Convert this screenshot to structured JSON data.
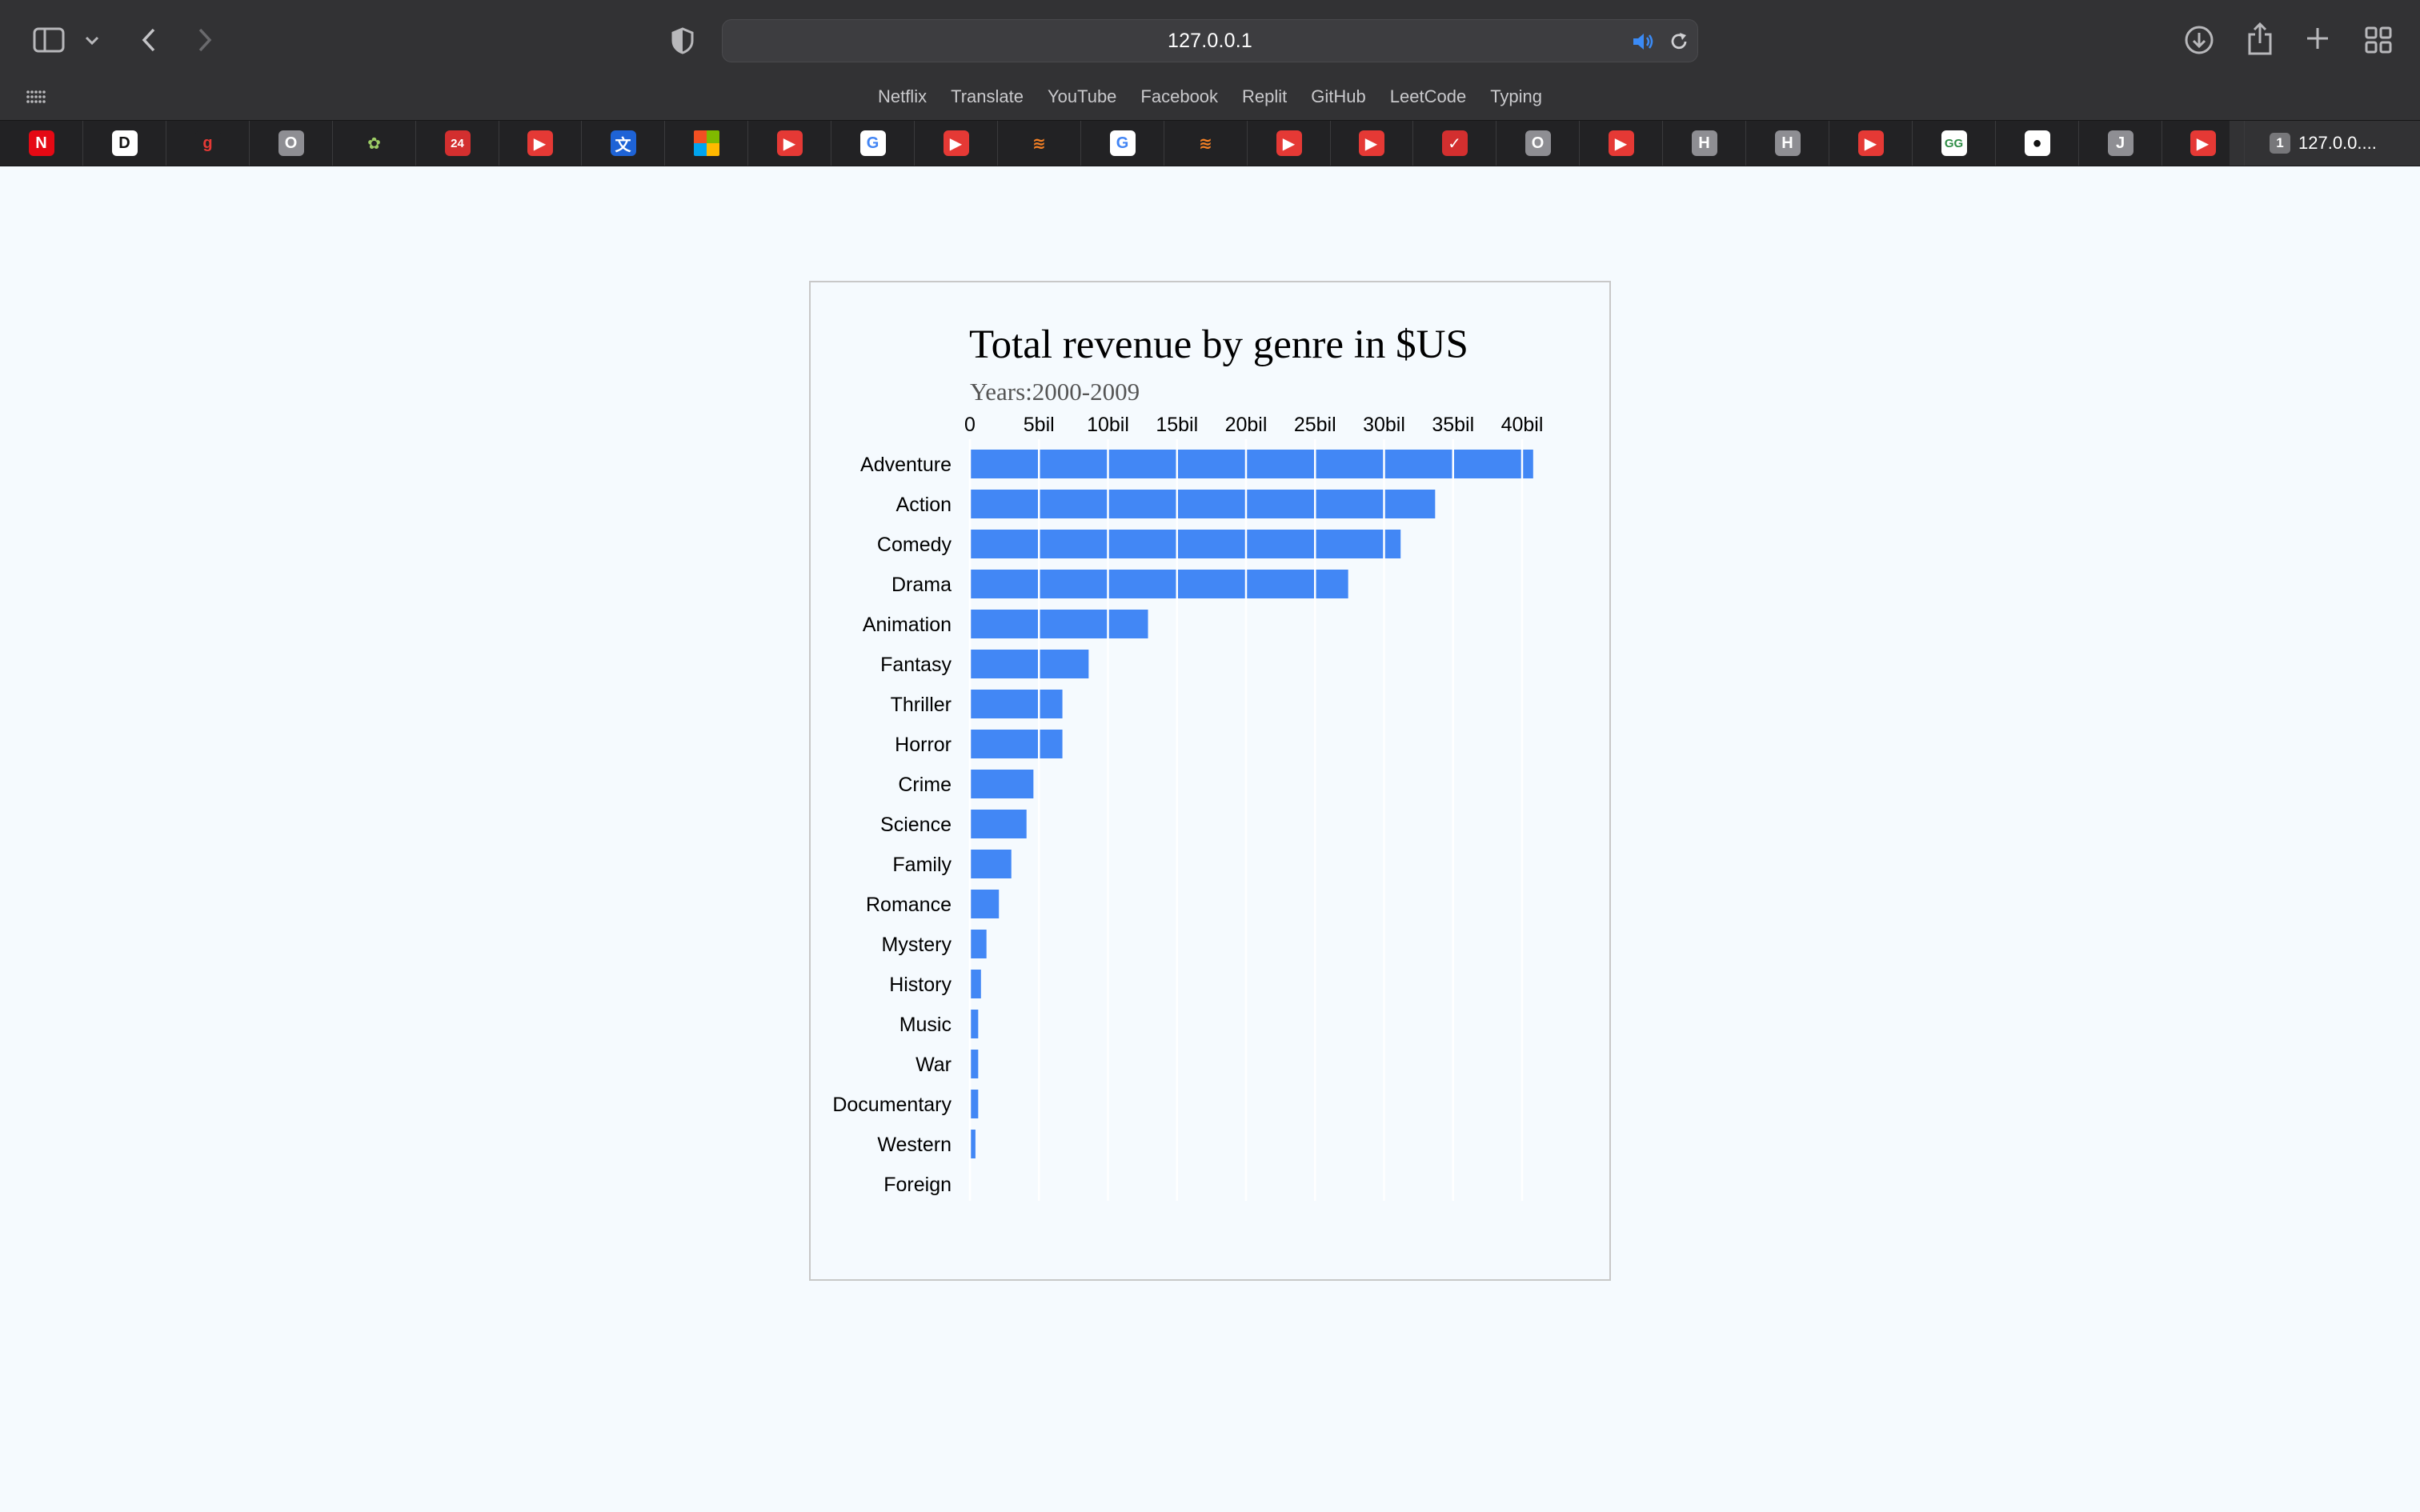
{
  "browser": {
    "url": "127.0.0.1",
    "favorites": [
      "Netflix",
      "Translate",
      "YouTube",
      "Facebook",
      "Replit",
      "GitHub",
      "LeetCode",
      "Typing"
    ],
    "pinned_tabs": [
      {
        "icon": "netflix-icon",
        "glyph": "N",
        "bg": "#e50914",
        "fg": "#ffffff"
      },
      {
        "icon": "dropbox-paper-icon",
        "glyph": "D",
        "bg": "#ffffff",
        "fg": "#111111"
      },
      {
        "icon": "grammarly-icon",
        "glyph": "g",
        "bg": "#222224",
        "fg": "#e53935"
      },
      {
        "icon": "letter-o-icon",
        "glyph": "O",
        "bg": "#8e8e93",
        "fg": "#ffffff"
      },
      {
        "icon": "chrome-dino-icon",
        "glyph": "✿",
        "bg": "#222224",
        "fg": "#9ccc65"
      },
      {
        "icon": "number-24-icon",
        "glyph": "24",
        "bg": "#d32f2f",
        "fg": "#ffffff"
      },
      {
        "icon": "youtube-icon",
        "glyph": "▶",
        "bg": "#e53935",
        "fg": "#ffffff"
      },
      {
        "icon": "translate-icon",
        "glyph": "文",
        "bg": "#1e63d6",
        "fg": "#ffffff"
      },
      {
        "icon": "microsoft-icon",
        "glyph": "",
        "bg": "microsoft",
        "fg": "#ffffff"
      },
      {
        "icon": "youtube-icon",
        "glyph": "▶",
        "bg": "#e53935",
        "fg": "#ffffff"
      },
      {
        "icon": "google-icon",
        "glyph": "G",
        "bg": "#ffffff",
        "fg": "#4285f4"
      },
      {
        "icon": "youtube-icon",
        "glyph": "▶",
        "bg": "#e53935",
        "fg": "#ffffff"
      },
      {
        "icon": "stackoverflow-icon",
        "glyph": "≋",
        "bg": "#222224",
        "fg": "#f48024"
      },
      {
        "icon": "google-icon",
        "glyph": "G",
        "bg": "#ffffff",
        "fg": "#4285f4"
      },
      {
        "icon": "stackoverflow-icon",
        "glyph": "≋",
        "bg": "#222224",
        "fg": "#f48024"
      },
      {
        "icon": "youtube-icon",
        "glyph": "▶",
        "bg": "#e53935",
        "fg": "#ffffff"
      },
      {
        "icon": "youtube-icon",
        "glyph": "▶",
        "bg": "#e53935",
        "fg": "#ffffff"
      },
      {
        "icon": "todoist-check-icon",
        "glyph": "✓",
        "bg": "#d32f2f",
        "fg": "#ffffff"
      },
      {
        "icon": "letter-o-icon",
        "glyph": "O",
        "bg": "#8e8e93",
        "fg": "#ffffff"
      },
      {
        "icon": "youtube-icon",
        "glyph": "▶",
        "bg": "#e53935",
        "fg": "#ffffff"
      },
      {
        "icon": "letter-h-icon",
        "glyph": "H",
        "bg": "#8e8e93",
        "fg": "#ffffff"
      },
      {
        "icon": "letter-h-icon",
        "glyph": "H",
        "bg": "#8e8e93",
        "fg": "#ffffff"
      },
      {
        "icon": "youtube-icon",
        "glyph": "▶",
        "bg": "#e53935",
        "fg": "#ffffff"
      },
      {
        "icon": "geeksforgeeks-icon",
        "glyph": "GG",
        "bg": "#ffffff",
        "fg": "#2f8d46"
      },
      {
        "icon": "github-icon",
        "glyph": "●",
        "bg": "#ffffff",
        "fg": "#111111"
      },
      {
        "icon": "letter-j-icon",
        "glyph": "J",
        "bg": "#8e8e93",
        "fg": "#ffffff"
      },
      {
        "icon": "youtube-icon",
        "glyph": "▶",
        "bg": "#e53935",
        "fg": "#ffffff"
      }
    ],
    "active_tab": {
      "badge": "1",
      "label": "127.0.0...."
    }
  },
  "colors": {
    "bar": "#4287f5",
    "page_bg": "#f5fafe",
    "gridline": "#ffffff"
  },
  "chart_data": {
    "type": "bar",
    "orientation": "horizontal",
    "title": "Total revenue by genre in $US",
    "subtitle": "Years:2000-2009",
    "xlabel": "",
    "ylabel": "",
    "x_ticks": [
      "0",
      "5bil",
      "10bil",
      "15bil",
      "20bil",
      "25bil",
      "30bil",
      "35bil",
      "40bil"
    ],
    "x_tick_values": [
      0,
      5,
      10,
      15,
      20,
      25,
      30,
      35,
      40
    ],
    "xlim": [
      0,
      40
    ],
    "unit": "billion US$",
    "axis_position": "top",
    "grid": true,
    "categories": [
      "Adventure",
      "Action",
      "Comedy",
      "Drama",
      "Animation",
      "Fantasy",
      "Thriller",
      "Horror",
      "Crime",
      "Science",
      "Family",
      "Romance",
      "Mystery",
      "History",
      "Music",
      "War",
      "Documentary",
      "Western",
      "Foreign"
    ],
    "values": [
      40.8,
      33.7,
      31.2,
      27.4,
      12.9,
      8.6,
      6.7,
      6.7,
      4.6,
      4.1,
      3.0,
      2.1,
      1.2,
      0.8,
      0.6,
      0.6,
      0.6,
      0.4,
      0.0
    ]
  }
}
